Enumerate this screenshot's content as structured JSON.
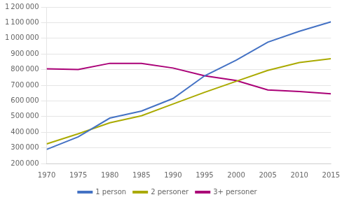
{
  "chart_data": {
    "type": "line",
    "x": [
      1970,
      1975,
      1980,
      1985,
      1990,
      1995,
      2000,
      2005,
      2010,
      2015
    ],
    "series": [
      {
        "name": "1 person",
        "color": "#4472C4",
        "values": [
          290000,
          370000,
          490000,
          535000,
          615000,
          760000,
          860000,
          975000,
          1045000,
          1105000
        ]
      },
      {
        "name": "2 personer",
        "color": "#AAAA00",
        "values": [
          325000,
          390000,
          460000,
          505000,
          580000,
          655000,
          725000,
          795000,
          845000,
          870000
        ]
      },
      {
        "name": "3+ personer",
        "color": "#AA0077",
        "values": [
          805000,
          800000,
          840000,
          840000,
          810000,
          760000,
          730000,
          670000,
          660000,
          645000
        ]
      }
    ],
    "xlim": [
      1970,
      2015
    ],
    "xticks": [
      1970,
      1975,
      1980,
      1985,
      1990,
      1995,
      2000,
      2005,
      2010,
      2015
    ],
    "ylim": [
      200000,
      1200000
    ],
    "yticks": [
      {
        "value": 200000,
        "label": "200 000"
      },
      {
        "value": 300000,
        "label": "300 000"
      },
      {
        "value": 400000,
        "label": "400 000"
      },
      {
        "value": 500000,
        "label": "500 000"
      },
      {
        "value": 600000,
        "label": "600 000"
      },
      {
        "value": 700000,
        "label": "700 000"
      },
      {
        "value": 800000,
        "label": "800 000"
      },
      {
        "value": 900000,
        "label": "900 000"
      },
      {
        "value": 1000000,
        "label": "1 000 000"
      },
      {
        "value": 1100000,
        "label": "1 100 000"
      },
      {
        "value": 1200000,
        "label": "1 200 000"
      }
    ],
    "grid": true,
    "legend": "bottom"
  }
}
